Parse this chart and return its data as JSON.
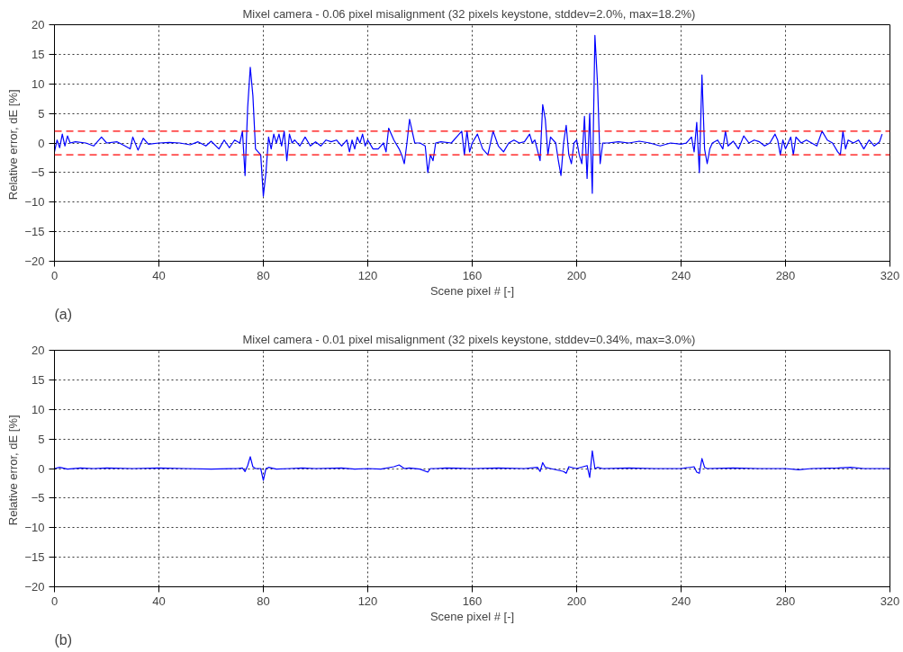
{
  "chart_data": [
    {
      "type": "line",
      "title": "Mixel camera - 0.06 pixel misalignment   (32 pixels keystone, stddev=2.0%, max=18.2%)",
      "xlabel": "Scene pixel # [-]",
      "ylabel": "Relative error, dE  [%]",
      "x": [
        0,
        1,
        2,
        3,
        4,
        5,
        6,
        8,
        12,
        15,
        18,
        20,
        24,
        27,
        29,
        30,
        32,
        34,
        36,
        40,
        44,
        48,
        52,
        55,
        58,
        60,
        63,
        65,
        67,
        69,
        71,
        72,
        73,
        74,
        75,
        76,
        77,
        78,
        79,
        80,
        81,
        82,
        83,
        84,
        85,
        86,
        87,
        88,
        89,
        90,
        91,
        92,
        94,
        96,
        98,
        100,
        102,
        104,
        106,
        108,
        110,
        112,
        113,
        114,
        115,
        116,
        117,
        118,
        119,
        120,
        122,
        124,
        125,
        126,
        127,
        128,
        130,
        132,
        133,
        134,
        135,
        136,
        138,
        140,
        142,
        143,
        144,
        145,
        146,
        148,
        152,
        155,
        156,
        157,
        158,
        159,
        160,
        162,
        164,
        166,
        168,
        170,
        172,
        174,
        176,
        178,
        180,
        182,
        183,
        184,
        186,
        187,
        188,
        189,
        190,
        192,
        193,
        194,
        195,
        196,
        197,
        198,
        199,
        200,
        201,
        202,
        203,
        204,
        205,
        206,
        207,
        208,
        209,
        210,
        212,
        216,
        220,
        224,
        228,
        232,
        236,
        240,
        242,
        244,
        245,
        246,
        247,
        248,
        249,
        250,
        251,
        252,
        254,
        256,
        257,
        258,
        260,
        262,
        264,
        266,
        268,
        270,
        272,
        274,
        276,
        277,
        278,
        279,
        280,
        282,
        283,
        284,
        286,
        288,
        290,
        292,
        294,
        296,
        298,
        300,
        301,
        302,
        303,
        304,
        306,
        308,
        310,
        312,
        314,
        316,
        317
      ],
      "series": [
        {
          "color": "#0000ff",
          "values": [
            -1.5,
            0.5,
            -0.8,
            1.5,
            -0.5,
            1.2,
            0,
            0.2,
            0,
            -0.5,
            1,
            0,
            0.2,
            -0.5,
            -1,
            1,
            -1.2,
            0.8,
            -0.2,
            0,
            0.1,
            0,
            -0.3,
            0.2,
            -0.5,
            0.3,
            -1,
            0.5,
            -0.8,
            0.5,
            0,
            2,
            -5.5,
            6,
            12.8,
            8,
            -1,
            -1.5,
            -2,
            -9,
            -5,
            1,
            -1,
            1.5,
            0,
            1.5,
            -0.5,
            2,
            -3,
            1.5,
            0,
            0.5,
            -0.5,
            1,
            -0.5,
            0.2,
            -0.5,
            0.5,
            0.2,
            0.5,
            -0.5,
            0.5,
            -1.5,
            0.5,
            -1,
            1,
            0,
            1.5,
            -0.5,
            0.5,
            -1,
            -1,
            -0.5,
            0,
            -1.5,
            2.5,
            0.5,
            -1,
            -2,
            -3.5,
            0,
            4,
            0,
            0,
            -0.5,
            -5,
            -2,
            -3,
            0,
            0.2,
            0,
            1.5,
            2,
            -2,
            2,
            -1.5,
            0,
            1.5,
            -1,
            -2,
            2,
            -0.5,
            -1.5,
            0,
            0.5,
            0,
            0.2,
            1.5,
            0,
            0.5,
            -3,
            6.5,
            4,
            -2,
            1,
            0,
            -3,
            -5.5,
            0,
            3,
            -2,
            -3.5,
            0,
            0.5,
            -2,
            -3.5,
            4.5,
            -6,
            5,
            -8.5,
            18.2,
            10,
            -3.5,
            0,
            0,
            0.2,
            0,
            0.3,
            0,
            -0.5,
            0,
            -0.2,
            0,
            1,
            -1.5,
            3.5,
            -5,
            11.5,
            -1,
            -3.5,
            -1,
            0,
            0.5,
            -1,
            2,
            -0.5,
            0.3,
            -1,
            1.2,
            0,
            0.5,
            0.2,
            -0.5,
            0,
            1.5,
            0.5,
            -2,
            0.5,
            -1,
            1,
            -2,
            1,
            0,
            0.5,
            0,
            -0.5,
            2,
            0.5,
            0,
            -1.5,
            -2,
            2,
            -1,
            0.5,
            0,
            0.5,
            -1,
            0.5,
            -0.5,
            0.2,
            1.5
          ]
        }
      ],
      "xlim": [
        0,
        320
      ],
      "ylim": [
        -20,
        20
      ],
      "xticks": [
        0,
        40,
        80,
        120,
        160,
        200,
        240,
        280,
        320
      ],
      "yticks": [
        -20,
        -15,
        -10,
        -5,
        0,
        5,
        10,
        15,
        20
      ],
      "ref_lines": [
        {
          "axis": "y",
          "value": 2.0,
          "color": "#ff0000",
          "line_style": "dashed"
        },
        {
          "axis": "y",
          "value": -2.0,
          "color": "#ff0000",
          "line_style": "dashed"
        }
      ],
      "grid": true,
      "marker": "none",
      "line_style": "solid",
      "annotations": [
        "(a)"
      ]
    },
    {
      "type": "line",
      "title": "Mixel camera - 0.01 pixel misalignment   (32 pixels keystone, stddev=0.34%, max=3.0%)",
      "xlabel": "Scene pixel # [-]",
      "ylabel": "Relative error, dE  [%]",
      "x": [
        0,
        2,
        5,
        10,
        15,
        20,
        30,
        40,
        50,
        60,
        70,
        72,
        73,
        74,
        75,
        76,
        77,
        79,
        80,
        81,
        82,
        85,
        90,
        95,
        100,
        110,
        115,
        120,
        125,
        130,
        132,
        134,
        136,
        140,
        143,
        144,
        146,
        150,
        160,
        170,
        180,
        185,
        186,
        187,
        188,
        190,
        195,
        196,
        197,
        200,
        204,
        205,
        206,
        207,
        208,
        210,
        220,
        230,
        240,
        245,
        246,
        247,
        248,
        249,
        250,
        260,
        270,
        280,
        285,
        290,
        300,
        305,
        310,
        320
      ],
      "series": [
        {
          "color": "#0000ff",
          "values": [
            0,
            0.2,
            -0.1,
            0.1,
            0,
            0.1,
            0,
            0.1,
            0,
            -0.1,
            0,
            0.1,
            -0.5,
            0.5,
            2,
            0.3,
            0,
            0,
            -2,
            0,
            0.2,
            -0.1,
            0,
            0.1,
            0,
            0.1,
            -0.1,
            0,
            -0.1,
            0.3,
            0.6,
            0,
            0.1,
            -0.1,
            -0.6,
            0,
            0,
            0.1,
            0,
            0.1,
            0,
            0.2,
            -0.5,
            1,
            0.2,
            0,
            -0.5,
            -0.8,
            0.3,
            0,
            0.5,
            -1.5,
            3,
            0,
            0.2,
            0,
            0.1,
            0,
            0,
            0.3,
            -0.6,
            -0.8,
            1.7,
            0.2,
            0,
            0.1,
            0,
            0,
            -0.2,
            0,
            0.1,
            0.2,
            0,
            0
          ]
        }
      ],
      "xlim": [
        0,
        320
      ],
      "ylim": [
        -20,
        20
      ],
      "xticks": [
        0,
        40,
        80,
        120,
        160,
        200,
        240,
        280,
        320
      ],
      "yticks": [
        -20,
        -15,
        -10,
        -5,
        0,
        5,
        10,
        15,
        20
      ],
      "grid": true,
      "marker": "none",
      "line_style": "solid",
      "annotations": [
        "(b)"
      ]
    }
  ]
}
